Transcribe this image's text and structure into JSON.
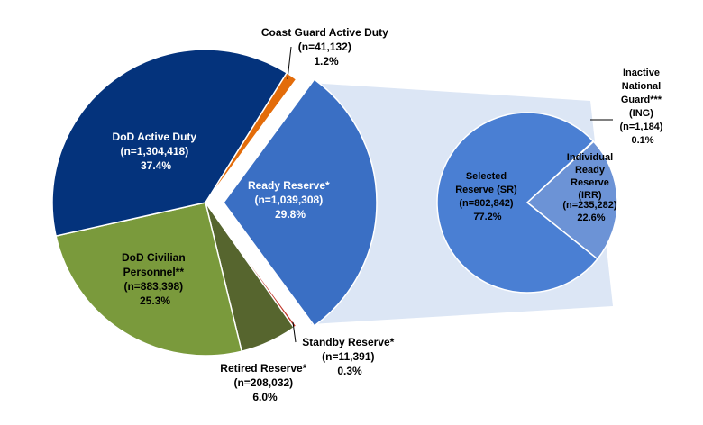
{
  "chart_data": [
    {
      "type": "pie",
      "title": "",
      "slices": [
        {
          "label": "Ready Reserve*",
          "count": "(n=1,039,308)",
          "percent": "29.8%",
          "value": 29.8,
          "color": "#3a6fc4",
          "exploded": true
        },
        {
          "label": "Standby Reserve*",
          "count": "(n=11,391)",
          "percent": "0.3%",
          "value": 0.3,
          "color": "#c0392b"
        },
        {
          "label": "Retired Reserve*",
          "count": "(n=208,032)",
          "percent": "6.0%",
          "value": 6.0,
          "color": "#56652e"
        },
        {
          "label": "DoD Civilian Personnel**",
          "count": "(n=883,398)",
          "percent": "25.3%",
          "value": 25.3,
          "color": "#7a9a3c"
        },
        {
          "label": "DoD Active Duty",
          "count": "(n=1,304,418)",
          "percent": "37.4%",
          "value": 37.4,
          "color": "#04337c"
        },
        {
          "label": "Coast Guard Active Duty",
          "count": "(n=41,132)",
          "percent": "1.2%",
          "value": 1.2,
          "color": "#e36c0a"
        }
      ]
    },
    {
      "type": "pie",
      "title": "",
      "slices": [
        {
          "label": "Inactive National Guard*** (ING)",
          "count": "(n=1,184)",
          "percent": "0.1%",
          "value": 0.1,
          "color": "#3a6fc4"
        },
        {
          "label": "Individual Ready Reserve (IRR)",
          "count": "(n=235,282)",
          "percent": "22.6%",
          "value": 22.6,
          "color": "#6c93d6"
        },
        {
          "label": "Selected Reserve (SR)",
          "count": "(n=802,842)",
          "percent": "77.2%",
          "value": 77.2,
          "color": "#4a7fd3"
        }
      ]
    }
  ],
  "labels": {
    "coast_guard": {
      "l1": "Coast Guard Active Duty",
      "l2": "(n=41,132)",
      "l3": "1.2%"
    },
    "active_duty": {
      "l1": "DoD Active Duty",
      "l2": "(n=1,304,418)",
      "l3": "37.4%"
    },
    "civilian": {
      "l1": "DoD Civilian",
      "l2": "Personnel**",
      "l3": "(n=883,398)",
      "l4": "25.3%"
    },
    "ready": {
      "l1": "Ready Reserve*",
      "l2": "(n=1,039,308)",
      "l3": "29.8%"
    },
    "retired": {
      "l1": "Retired Reserve*",
      "l2": "(n=208,032)",
      "l3": "6.0%"
    },
    "standby": {
      "l1": "Standby Reserve*",
      "l2": "(n=11,391)",
      "l3": "0.3%"
    },
    "selected": {
      "l1": "Selected",
      "l2": "Reserve (SR)",
      "l3": "(n=802,842)",
      "l4": "77.2%"
    },
    "irr": {
      "l1": "Individual",
      "l2": "Ready",
      "l3": "Reserve",
      "l4": "(IRR)",
      "l5": "(n=235,282)",
      "l6": "22.6%"
    },
    "ing": {
      "l1": "Inactive",
      "l2": "National",
      "l3": "Guard***",
      "l4": "(ING)",
      "l5": "(n=1,184)",
      "l6": "0.1%"
    }
  }
}
